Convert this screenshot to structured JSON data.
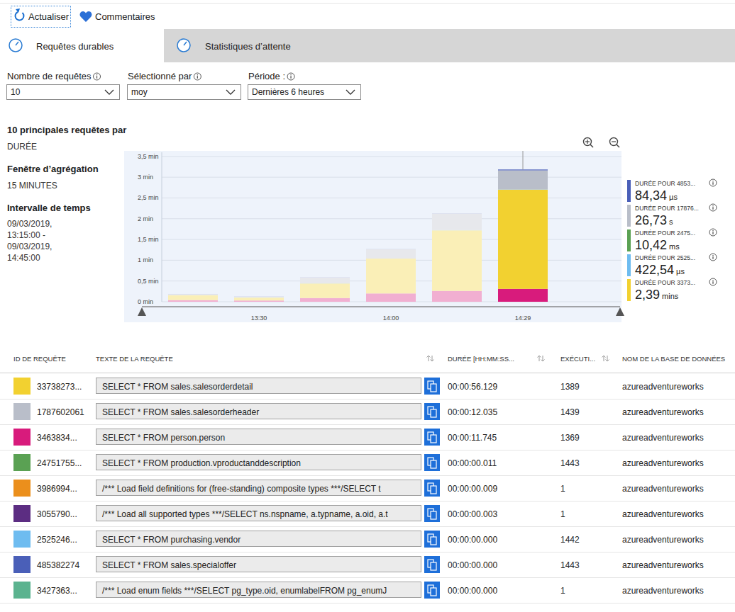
{
  "toolbar": {
    "refresh": "Actualiser",
    "feedback": "Commentaires"
  },
  "tabs": [
    {
      "label": "Requêtes durables",
      "active": true
    },
    {
      "label": "Statistiques d’attente",
      "active": false
    }
  ],
  "filters": [
    {
      "label": "Nombre de requêtes",
      "value": "10"
    },
    {
      "label": "Sélectionné par",
      "value": "moy"
    },
    {
      "label": "Période :",
      "value": "Dernières 6 heures"
    }
  ],
  "summary": {
    "title": "10 principales requêtes par",
    "metric": "DURÉE",
    "window_label": "Fenêtre d’agrégation",
    "window": "15 MINUTES",
    "range_label": "Intervalle de temps",
    "range_lines": [
      "09/03/2019,",
      "13:15:00 -",
      "09/03/2019,",
      "14:45:00"
    ]
  },
  "chart_data": {
    "type": "bar",
    "stacked": true,
    "grid": true,
    "categories": [
      null,
      "13:30",
      null,
      "14:00",
      null,
      "14:29"
    ],
    "ylim": [
      0,
      3.6
    ],
    "yticks": [
      {
        "value": 0,
        "label": "0 min"
      },
      {
        "value": 0.5,
        "label": "0,5 min"
      },
      {
        "value": 1,
        "label": "1 min"
      },
      {
        "value": 1.5,
        "label": "1,5 min"
      },
      {
        "value": 2,
        "label": "2 min"
      },
      {
        "value": 2.5,
        "label": "2,5 min"
      },
      {
        "value": 3,
        "label": "3 min"
      },
      {
        "value": 3.5,
        "label": "3,5 min"
      }
    ],
    "series": [
      {
        "name": "DURÉE POUR 4853...",
        "color": "#4a5fb8",
        "values": [
          0.005,
          0.005,
          0.005,
          0.005,
          0.005,
          0.02
        ],
        "summary": {
          "value": "84,34",
          "unit": "µs"
        }
      },
      {
        "name": "DURÉE POUR 17876...",
        "color": "#b9bec9",
        "values": [
          0.02,
          0.02,
          0.14,
          0.22,
          0.4,
          0.46
        ],
        "summary": {
          "value": "26,73",
          "unit": "s"
        }
      },
      {
        "name": "DURÉE POUR 2475...",
        "color": "#5aa153",
        "values": [
          0.001,
          0.001,
          0.001,
          0.001,
          0.001,
          0.001
        ],
        "summary": {
          "value": "10,42",
          "unit": "ms"
        }
      },
      {
        "name": "DURÉE POUR 2525...",
        "color": "#6ebcf0",
        "values": [
          0.002,
          0.002,
          0.003,
          0.003,
          0.004,
          0.004
        ],
        "summary": {
          "value": "422,54",
          "unit": "µs"
        }
      },
      {
        "name": "DURÉE POUR 3373...",
        "color": "#f2d130",
        "values": [
          0.12,
          0.07,
          0.35,
          0.84,
          1.46,
          2.39
        ],
        "summary": {
          "value": "2,39",
          "unit": "mins"
        }
      },
      {
        "color": "#d81b7c",
        "values": [
          0.04,
          0.03,
          0.09,
          0.2,
          0.26,
          0.31
        ]
      }
    ]
  },
  "table": {
    "headers": [
      "ID DE REQUÊTE",
      "TEXTE DE LA REQUÊTE",
      "DURÉE [HH:MM:SS...",
      "EXÉCUTI...",
      "NOM DE LA BASE DE DONNÉES"
    ],
    "rows": [
      {
        "color": "#f2d130",
        "id": "33738273...",
        "text": "SELECT * FROM sales.salesorderdetail",
        "duration": "00:00:56.129",
        "executions": 1389,
        "database": "azureadventureworks"
      },
      {
        "color": "#b9bec9",
        "id": "1787602061",
        "text": "SELECT * FROM sales.salesorderheader",
        "duration": "00:00:12.035",
        "executions": 1439,
        "database": "azureadventureworks"
      },
      {
        "color": "#d81b7c",
        "id": "3463834...",
        "text": "SELECT * FROM person.person",
        "duration": "00:00:11.745",
        "executions": 1369,
        "database": "azureadventureworks"
      },
      {
        "color": "#5aa153",
        "id": "24751755...",
        "text": "SELECT * FROM production.vproductanddescription",
        "duration": "00:00:00.011",
        "executions": 1443,
        "database": "azureadventureworks"
      },
      {
        "color": "#eb8f1c",
        "id": "3986994...",
        "text": "/*** Load field definitions for (free-standing) composite types ***/SELECT t",
        "duration": "00:00:00.009",
        "executions": 1,
        "database": "azureadventureworks"
      },
      {
        "color": "#5c2d82",
        "id": "3055790...",
        "text": "/*** Load all supported types ***/SELECT ns.nspname, a.typname, a.oid, a.t",
        "duration": "00:00:00.003",
        "executions": 1,
        "database": "azureadventureworks"
      },
      {
        "color": "#6ebcf0",
        "id": "2525246...",
        "text": "SELECT * FROM purchasing.vendor",
        "duration": "00:00:00.000",
        "executions": 1442,
        "database": "azureadventureworks"
      },
      {
        "color": "#4a5fb8",
        "id": "485382274",
        "text": "SELECT * FROM sales.specialoffer",
        "duration": "00:00:00.000",
        "executions": 1443,
        "database": "azureadventureworks"
      },
      {
        "color": "#5bb38f",
        "id": "3427363...",
        "text": "/*** Load enum fields ***/SELECT pg_type.oid, enumlabelFROM pg_enumJ",
        "duration": "00:00:00.000",
        "executions": 1,
        "database": "azureadventureworks"
      }
    ]
  }
}
